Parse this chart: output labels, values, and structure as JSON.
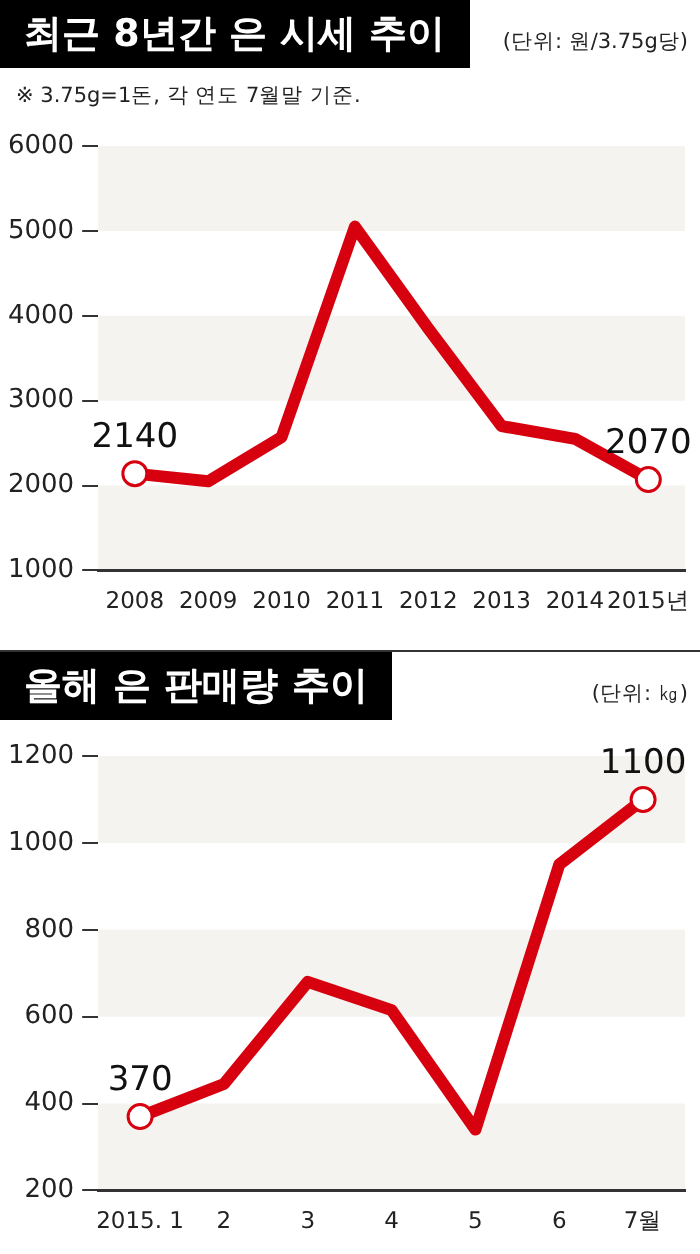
{
  "chart_data": [
    {
      "type": "line",
      "title": "최근 8년간 은 시세 추이",
      "annotations": [
        "(단위: 원/3.75g당)",
        "※ 3.75g=1돈, 각 연도 7월말 기준."
      ],
      "categories": [
        "2008",
        "2009",
        "2010",
        "2011",
        "2012",
        "2013",
        "2014",
        "2015년"
      ],
      "values": [
        2140,
        2050,
        2570,
        5050,
        3850,
        2700,
        2550,
        2070
      ],
      "value_labels": [
        "2140",
        null,
        null,
        null,
        null,
        null,
        null,
        "2070"
      ],
      "color": "#d7000f",
      "ylim": [
        1000,
        6000
      ],
      "yticks": [
        1000,
        2000,
        3000,
        4000,
        5000,
        6000
      ],
      "line_style": "solid"
    },
    {
      "type": "line",
      "title": "올해 은 판매량 추이",
      "annotations": [
        "(단위: ㎏)"
      ],
      "categories": [
        "2015. 1",
        "2",
        "3",
        "4",
        "5",
        "6",
        "7월"
      ],
      "values": [
        370,
        445,
        680,
        615,
        340,
        950,
        1100
      ],
      "value_labels": [
        "370",
        null,
        null,
        null,
        null,
        null,
        "1100"
      ],
      "color": "#d7000f",
      "ylim": [
        200,
        1200
      ],
      "yticks": [
        200,
        400,
        600,
        800,
        1000,
        1200
      ],
      "line_style": "solid"
    }
  ]
}
